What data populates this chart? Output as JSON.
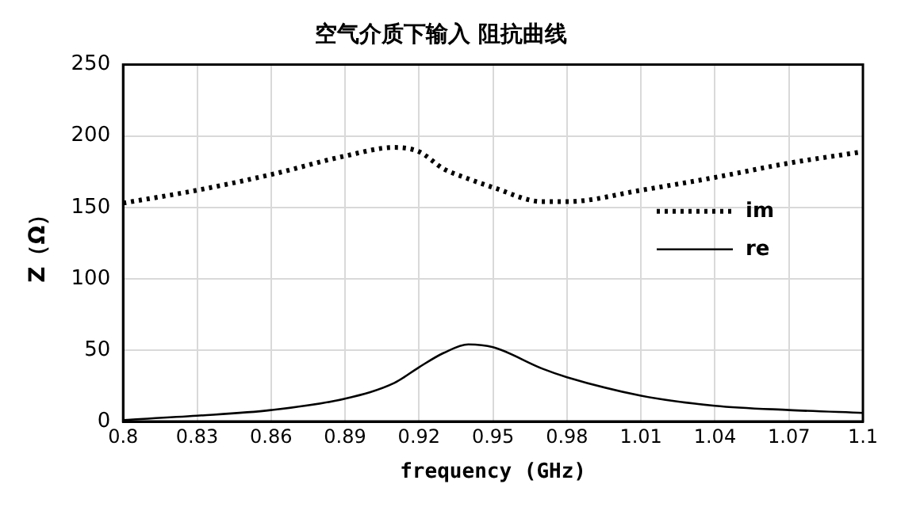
{
  "chart_data": {
    "type": "line",
    "title": "空气介质下输入 阻抗曲线",
    "xlabel": "frequency (GHz)",
    "ylabel": "Z（Ω）",
    "x": [
      0.8,
      0.83,
      0.86,
      0.89,
      0.91,
      0.92,
      0.93,
      0.94,
      0.95,
      0.97,
      0.98,
      1.01,
      1.04,
      1.07,
      1.1
    ],
    "series": [
      {
        "name": "im",
        "color": "#000000",
        "line_style": "dotted",
        "values": [
          153,
          162,
          173,
          186,
          192,
          189,
          177,
          170,
          164,
          154,
          154,
          162,
          171,
          181,
          189
        ]
      },
      {
        "name": "re",
        "color": "#000000",
        "line_style": "solid",
        "values": [
          1,
          4,
          8,
          16,
          27,
          38,
          48,
          54,
          52,
          37,
          31,
          18,
          11,
          8,
          6
        ]
      }
    ],
    "xlim": [
      0.8,
      1.1
    ],
    "xticks": [
      0.8,
      0.83,
      0.86,
      0.89,
      0.92,
      0.95,
      0.98,
      1.01,
      1.04,
      1.07,
      1.1
    ],
    "ylim": [
      0,
      250
    ],
    "yticks": [
      0,
      50,
      100,
      150,
      200,
      250
    ],
    "grid": true,
    "legend": "right",
    "marker": "none"
  }
}
